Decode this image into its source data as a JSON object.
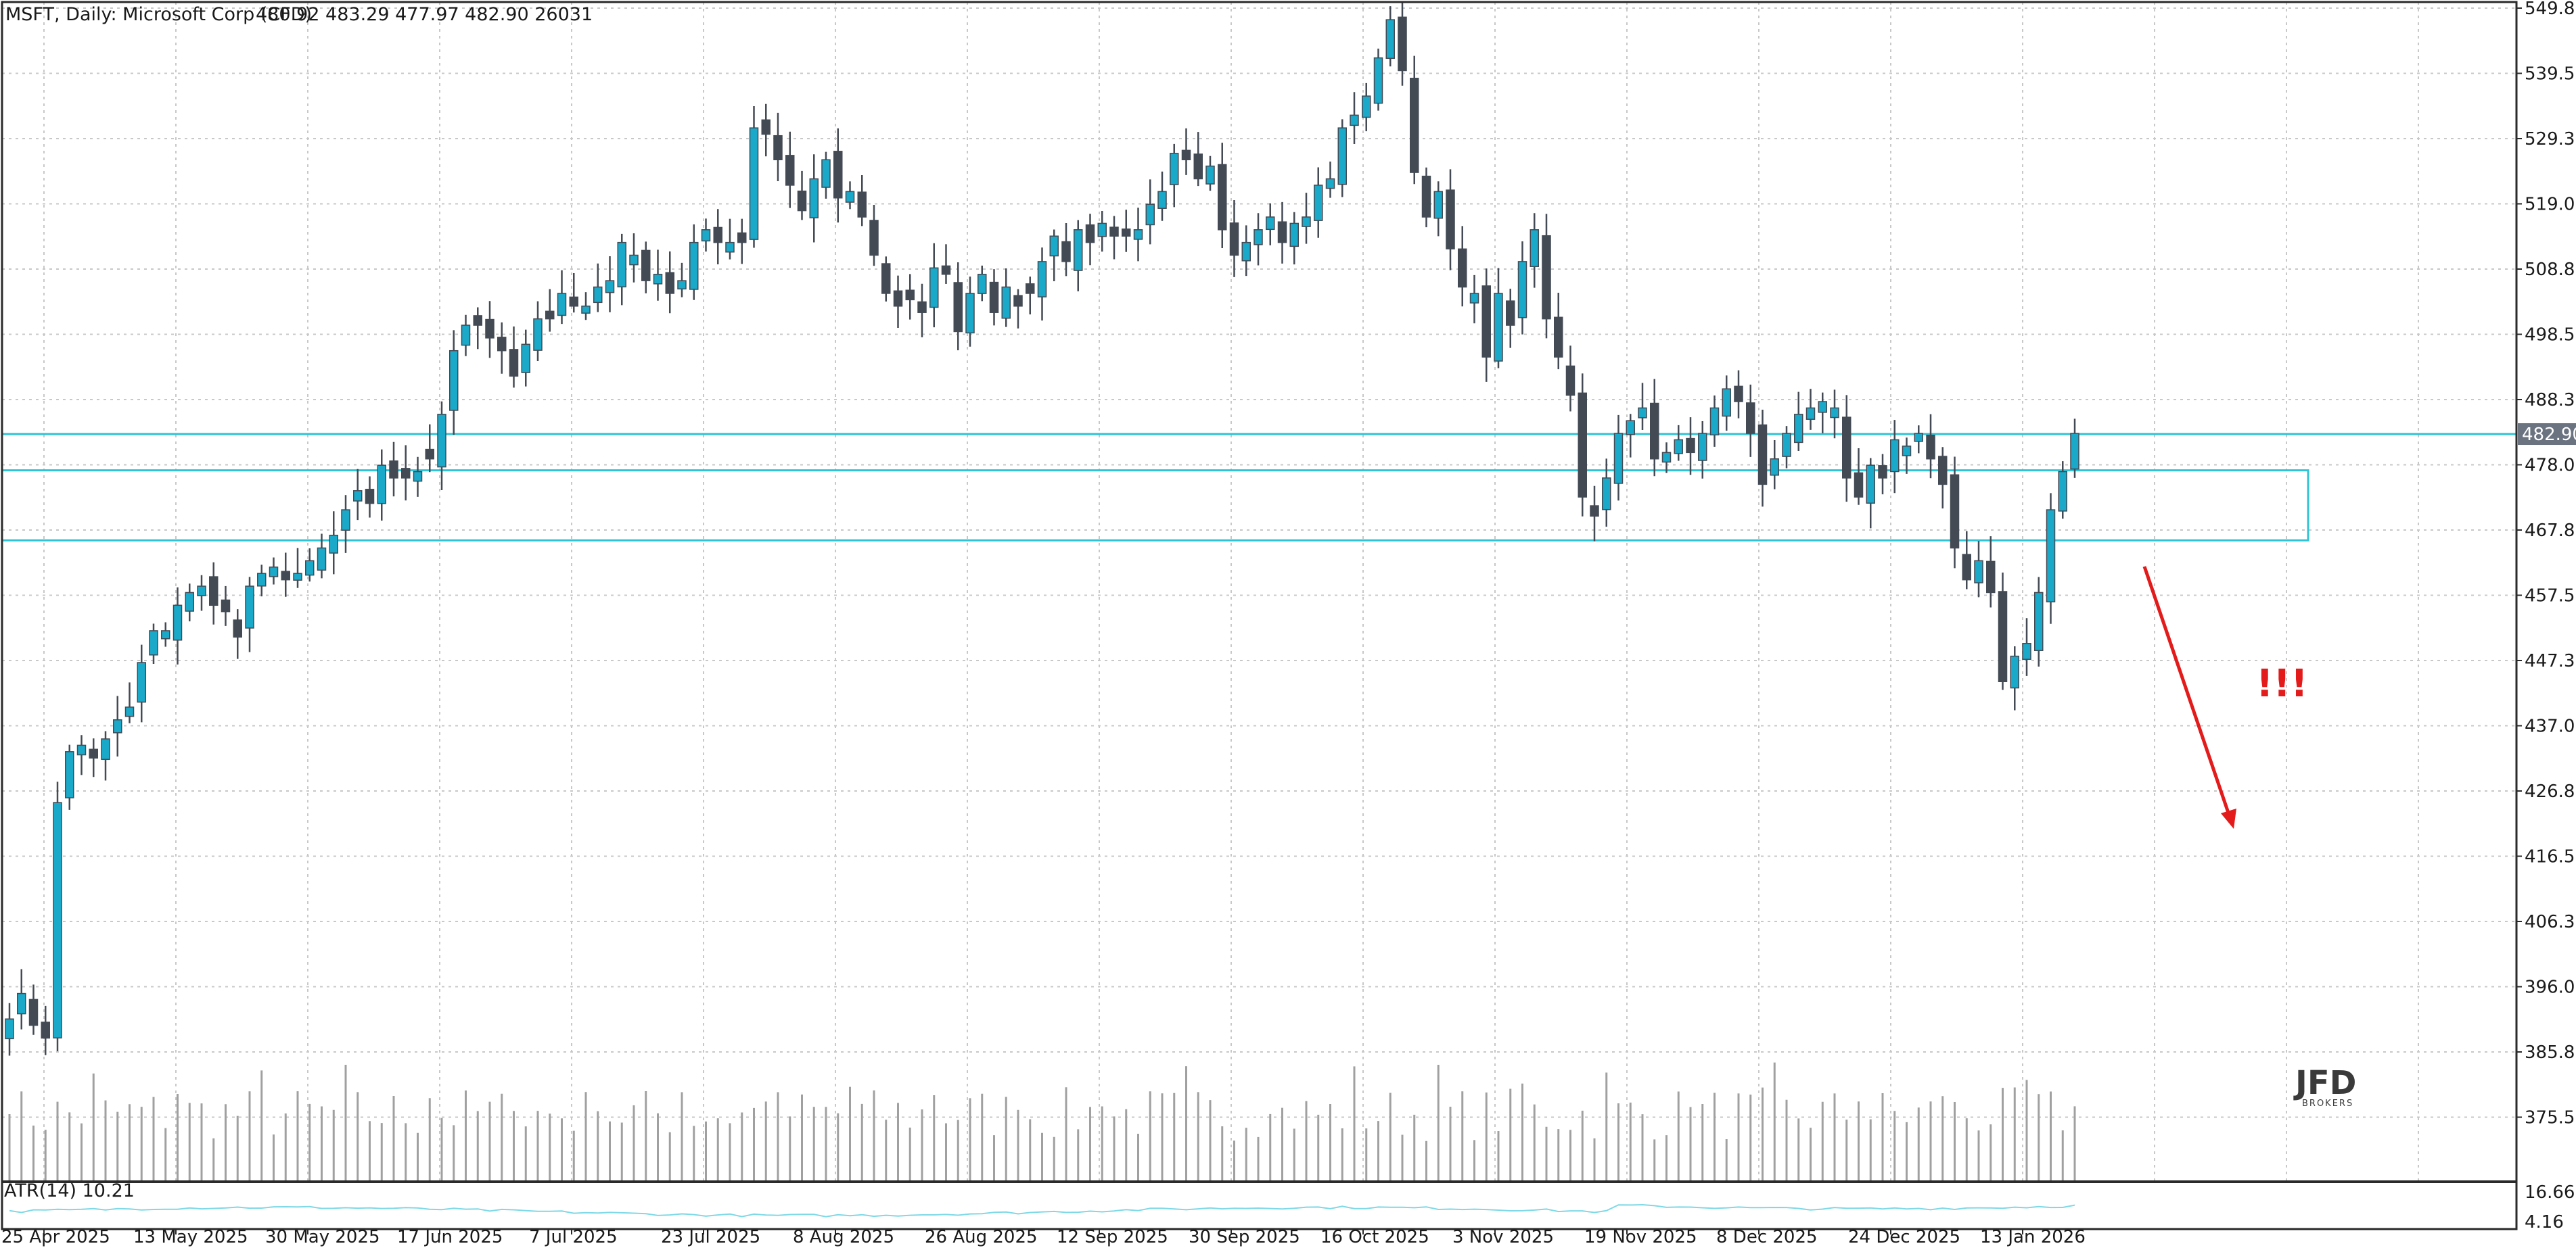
{
  "header": {
    "symbol_line": "MSFT, Daily:  Microsoft Corp (CFD)",
    "ohlc_line": "480.92 483.29 477.97 482.90  26031"
  },
  "indicator": {
    "label": "ATR(14) 10.21",
    "axis_labels": [
      "16.66",
      "4.16"
    ]
  },
  "annotation": {
    "exclamation": "!!!"
  },
  "logo": {
    "name": "JFD",
    "sub": "BROKERS"
  },
  "colors": {
    "bull": "#1aa9c9",
    "bear": "#434a54",
    "level": "#2ec4d6",
    "arrow": "#e31b1b",
    "grid": "#c8c8c8",
    "volume": "#a0a0a0",
    "atr": "#7fd9e6",
    "price_tag_bg": "#6b7280"
  },
  "chart_data": {
    "type": "candlestick",
    "title": "MSFT, Daily:  Microsoft Corp (CFD)",
    "ylim": [
      365,
      551
    ],
    "y_ticks": [
      "549.82",
      "539.57",
      "529.32",
      "519.07",
      "508.82",
      "498.57",
      "488.32",
      "478.07",
      "467.82",
      "457.57",
      "447.32",
      "437.07",
      "426.82",
      "416.57",
      "406.32",
      "396.07",
      "385.82",
      "375.57"
    ],
    "x_ticks": [
      "25 Apr 2025",
      "13 May 2025",
      "30 May 2025",
      "17 Jun 2025",
      "7 Jul 2025",
      "23 Jul 2025",
      "8 Aug 2025",
      "26 Aug 2025",
      "12 Sep 2025",
      "30 Sep 2025",
      "16 Oct 2025",
      "3 Nov 2025",
      "19 Nov 2025",
      "8 Dec 2025",
      "24 Dec 2025",
      "13 Jan 2026"
    ],
    "current_price": "482.90",
    "levels": {
      "resistance_line": 482.9,
      "zone_top": 477.2,
      "zone_bottom": 466.2
    },
    "close": [
      391,
      395,
      390,
      388,
      425,
      433,
      434,
      432,
      435,
      438,
      440,
      447,
      452,
      452,
      456,
      458,
      459,
      456,
      455,
      451,
      459,
      461,
      462,
      460,
      461,
      463,
      465,
      467,
      471,
      474,
      472,
      478,
      476,
      476,
      477,
      479,
      486,
      496,
      500,
      500,
      498,
      496,
      492,
      497,
      501,
      501,
      505,
      503,
      503,
      506,
      507,
      513,
      511,
      507,
      508,
      505,
      507,
      513,
      515,
      513,
      513,
      513,
      531,
      530,
      526,
      522,
      518,
      523,
      526,
      520,
      521,
      517,
      511,
      505,
      503,
      504,
      502,
      509,
      508,
      499,
      505,
      508,
      502,
      506,
      503,
      505,
      510,
      514,
      510,
      515,
      513,
      516,
      514,
      514,
      515,
      519,
      521,
      527,
      526,
      523,
      525,
      515,
      511,
      513,
      515,
      517,
      513,
      516,
      517,
      522,
      523,
      531,
      533,
      536,
      542,
      548,
      540,
      524,
      517,
      521,
      512,
      506,
      505,
      495,
      505,
      500,
      510,
      515,
      501,
      495,
      489,
      473,
      470,
      476,
      483,
      485,
      487,
      479,
      480,
      482,
      480,
      483,
      487,
      490,
      488,
      483,
      475,
      479,
      483,
      486,
      487,
      488,
      487,
      476,
      473,
      478,
      476,
      482,
      481,
      483,
      479,
      475,
      465,
      460,
      463,
      458,
      444,
      448,
      450,
      458,
      471,
      477,
      483
    ]
  }
}
